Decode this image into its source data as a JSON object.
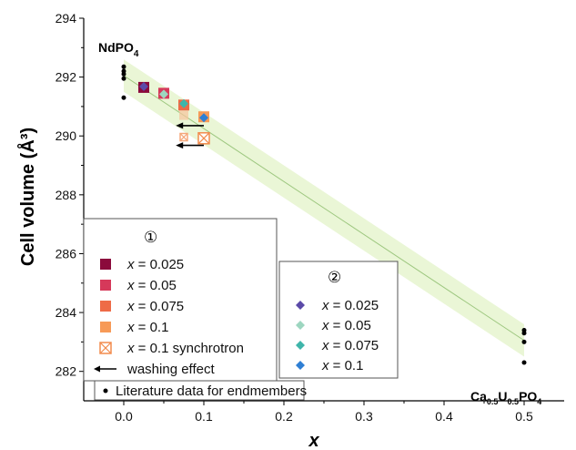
{
  "chart_data": {
    "type": "scatter",
    "xlabel": "x",
    "ylabel": "Cell volume (Å³)",
    "xlim": [
      -0.05,
      0.55
    ],
    "ylim": [
      281,
      294
    ],
    "xticks": [
      "0.0",
      "0.1",
      "0.2",
      "0.3",
      "0.4",
      "0.5"
    ],
    "yticks": [
      "282",
      "284",
      "286",
      "288",
      "290",
      "292",
      "294"
    ],
    "annotations": {
      "left_member": {
        "base": "NdPO",
        "sub": "4"
      },
      "right_member": {
        "ca": "Ca",
        "ca_sub": "0.5",
        "u": "U",
        "u_sub": "0.5",
        "po": "PO",
        "po_sub": "4"
      }
    },
    "trend": {
      "x": [
        0,
        0.5
      ],
      "y": [
        292.05,
        283.05
      ]
    },
    "literature": {
      "x": [
        0,
        0,
        0,
        0,
        0,
        0.5,
        0.5,
        0.5,
        0.5
      ],
      "y": [
        292.35,
        292.2,
        292.1,
        291.95,
        291.3,
        283.4,
        283.3,
        283.0,
        282.3
      ]
    },
    "series1": [
      {
        "name": "x = 0.025",
        "x": 0.025,
        "y": 291.65,
        "color": "#8b0a3c",
        "marker": "square"
      },
      {
        "name": "x = 0.05",
        "x": 0.05,
        "y": 291.45,
        "color": "#d6395a",
        "marker": "square"
      },
      {
        "name": "x = 0.075",
        "x": 0.075,
        "y": 291.05,
        "color": "#ee6b47",
        "marker": "square"
      },
      {
        "name": "x = 0.1",
        "x": 0.1,
        "y": 290.65,
        "color": "#f79a57",
        "marker": "square"
      },
      {
        "name": "x = 0.1 synchrotron",
        "x": 0.1,
        "y": 289.92,
        "color": "#f28b4d",
        "marker": "crossed-square"
      },
      {
        "name": "x = 0.075 synchrotron",
        "x": 0.075,
        "y": 289.96,
        "color": "#f5a77a",
        "marker": "crossed-square-small"
      },
      {
        "name": "x = 0.075 faint",
        "x": 0.075,
        "y": 290.7,
        "color": "#f7c49c",
        "marker": "square-faint"
      }
    ],
    "series2": [
      {
        "name": "x = 0.025",
        "x": 0.025,
        "y": 291.68,
        "color": "#5b4aa8",
        "marker": "diamond"
      },
      {
        "name": "x = 0.05",
        "x": 0.05,
        "y": 291.42,
        "color": "#9dd6c0",
        "marker": "diamond"
      },
      {
        "name": "x = 0.075",
        "x": 0.075,
        "y": 291.1,
        "color": "#3fb5aa",
        "marker": "diamond"
      },
      {
        "name": "x = 0.1",
        "x": 0.1,
        "y": 290.62,
        "color": "#2f7fd4",
        "marker": "diamond"
      }
    ],
    "arrows": [
      {
        "from": [
          0.1,
          290.35
        ],
        "to": [
          0.065,
          290.35
        ]
      },
      {
        "from": [
          0.1,
          289.68
        ],
        "to": [
          0.065,
          289.68
        ]
      }
    ],
    "legend1": {
      "title": "①",
      "items": [
        {
          "label": "x = 0.025",
          "color": "#8b0a3c",
          "marker": "square"
        },
        {
          "label": "x = 0.05",
          "color": "#d6395a",
          "marker": "square"
        },
        {
          "label": "x = 0.075",
          "color": "#ee6b47",
          "marker": "square"
        },
        {
          "label": "x = 0.1",
          "color": "#f79a57",
          "marker": "square"
        },
        {
          "label": "x = 0.1 synchrotron",
          "color": "#f28b4d",
          "marker": "crossed-square"
        },
        {
          "label": "washing effect",
          "color": "#000000",
          "marker": "arrow"
        }
      ]
    },
    "legend2": {
      "title": "②",
      "items": [
        {
          "label": "x = 0.025",
          "color": "#5b4aa8",
          "marker": "diamond"
        },
        {
          "label": "x = 0.05",
          "color": "#9dd6c0",
          "marker": "diamond"
        },
        {
          "label": "x = 0.075",
          "color": "#3fb5aa",
          "marker": "diamond"
        },
        {
          "label": "x = 0.1",
          "color": "#2f7fd4",
          "marker": "diamond"
        }
      ]
    },
    "legend3": {
      "label": "Literature data for endmembers",
      "marker": "dot",
      "color": "#000000"
    },
    "colors": {
      "band": "#eaf6d6",
      "trend_line": "#9dc77f",
      "axis": "#000000"
    }
  }
}
